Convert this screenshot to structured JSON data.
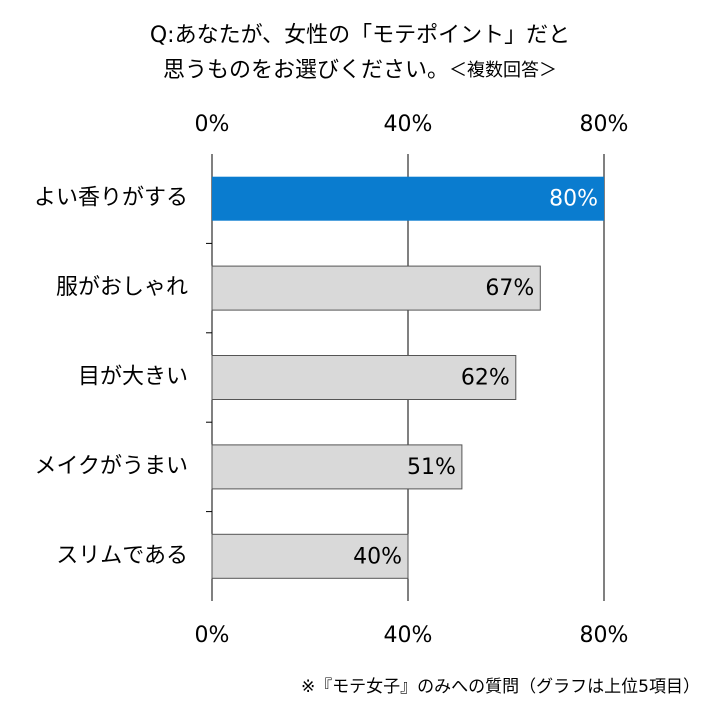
{
  "chart_data": {
    "type": "bar",
    "orientation": "horizontal",
    "title": [
      "Q:あなたが、女性の「モテポイント」だと",
      "思うものをお選びください。"
    ],
    "subtitle": "＜複数回答＞",
    "footnote": "※『モテ女子』のみへの質問（グラフは上位5項目）",
    "categories": [
      "よい香りがする",
      "服がおしゃれ",
      "目が大きい",
      "メイクがうまい",
      "スリムである"
    ],
    "values": [
      80,
      67,
      62,
      51,
      40
    ],
    "value_labels": [
      "80%",
      "67%",
      "62%",
      "51%",
      "40%"
    ],
    "colors": [
      "#0a7ccf",
      "#d9d9d9",
      "#d9d9d9",
      "#d9d9d9",
      "#d9d9d9"
    ],
    "label_colors": [
      "#ffffff",
      "#000000",
      "#000000",
      "#000000",
      "#000000"
    ],
    "xlim": [
      0,
      80
    ],
    "xticks": [
      {
        "value": 0,
        "label": "0%"
      },
      {
        "value": 40,
        "label": "40%"
      },
      {
        "value": 80,
        "label": "80%"
      }
    ],
    "grid": true
  }
}
